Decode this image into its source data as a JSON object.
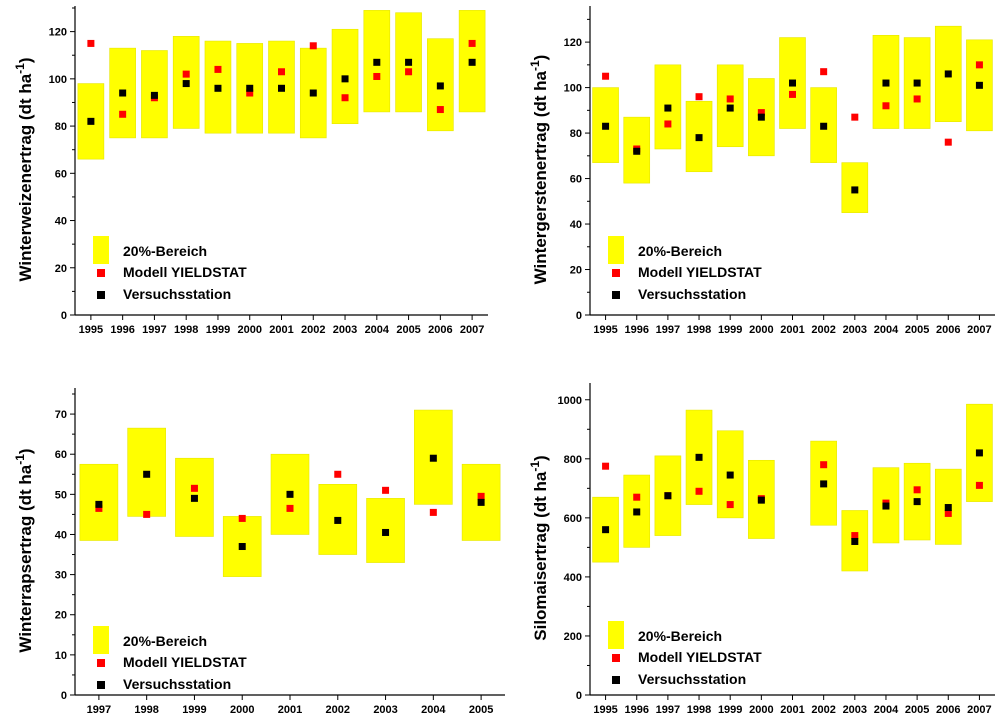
{
  "legend": {
    "range": "20%-Bereich",
    "model": "Modell YIELDSTAT",
    "station": "Versuchsstation"
  },
  "colors": {
    "range": "#ffff00",
    "model": "#ff0000",
    "station": "#000000",
    "axis": "#000000"
  },
  "chart_data": [
    {
      "type": "scatter",
      "ylabel": "Winterweizenertrag (dt ha-1)",
      "ylim": [
        0,
        130
      ],
      "yticks": [
        0,
        20,
        40,
        60,
        80,
        100,
        120
      ],
      "categories": [
        "1995",
        "1996",
        "1997",
        "1998",
        "1999",
        "2000",
        "2001",
        "2002",
        "2003",
        "2004",
        "2005",
        "2006",
        "2007"
      ],
      "series": [
        {
          "name": "20%-Bereich",
          "kind": "range",
          "low": [
            66,
            75,
            75,
            79,
            77,
            77,
            77,
            75,
            81,
            86,
            86,
            78,
            86
          ],
          "high": [
            98,
            113,
            112,
            118,
            116,
            115,
            116,
            113,
            121,
            129,
            128,
            117,
            129
          ]
        },
        {
          "name": "Modell YIELDSTAT",
          "kind": "point",
          "values": [
            115,
            85,
            92,
            102,
            104,
            94,
            103,
            114,
            92,
            101,
            103,
            87,
            115
          ]
        },
        {
          "name": "Versuchsstation",
          "kind": "point",
          "values": [
            82,
            94,
            93,
            98,
            96,
            96,
            96,
            94,
            100,
            107,
            107,
            97,
            107
          ]
        }
      ]
    },
    {
      "type": "scatter",
      "ylabel": "Wintergerstenertrag (dt ha-1)",
      "ylim": [
        0,
        135
      ],
      "yticks": [
        0,
        20,
        40,
        60,
        80,
        100,
        120
      ],
      "categories": [
        "1995",
        "1996",
        "1997",
        "1998",
        "1999",
        "2000",
        "2001",
        "2002",
        "2003",
        "2004",
        "2005",
        "2006",
        "2007"
      ],
      "series": [
        {
          "name": "20%-Bereich",
          "kind": "range",
          "low": [
            67,
            58,
            73,
            63,
            74,
            70,
            82,
            67,
            45,
            82,
            82,
            85,
            81
          ],
          "high": [
            100,
            87,
            110,
            94,
            110,
            104,
            122,
            100,
            67,
            123,
            122,
            127,
            121
          ]
        },
        {
          "name": "Modell YIELDSTAT",
          "kind": "point",
          "values": [
            105,
            73,
            84,
            96,
            95,
            89,
            97,
            107,
            87,
            92,
            95,
            76,
            110
          ]
        },
        {
          "name": "Versuchsstation",
          "kind": "point",
          "values": [
            83,
            72,
            91,
            78,
            91,
            87,
            102,
            83,
            55,
            102,
            102,
            106,
            101
          ]
        }
      ]
    },
    {
      "type": "scatter",
      "ylabel": "Winterrapsertrag (dt ha-1)",
      "ylim": [
        0,
        76
      ],
      "yticks": [
        0,
        10,
        20,
        30,
        40,
        50,
        60,
        70
      ],
      "categories": [
        "1997",
        "1998",
        "1999",
        "2000",
        "2001",
        "2002",
        "2003",
        "2004",
        "2005"
      ],
      "series": [
        {
          "name": "20%-Bereich",
          "kind": "range",
          "low": [
            38.5,
            44.5,
            39.5,
            29.5,
            40,
            35,
            33,
            47.5,
            38.5
          ],
          "high": [
            57.5,
            66.5,
            59,
            44.5,
            60,
            52.5,
            49,
            71,
            57.5
          ]
        },
        {
          "name": "Modell YIELDSTAT",
          "kind": "point",
          "values": [
            46.5,
            45,
            51.5,
            44,
            46.5,
            55,
            51,
            45.5,
            49.5
          ]
        },
        {
          "name": "Versuchsstation",
          "kind": "point",
          "values": [
            47.5,
            55,
            49,
            37,
            50,
            43.5,
            40.5,
            59,
            48
          ]
        }
      ]
    },
    {
      "type": "scatter",
      "ylabel": "Silomaisertrag (dt ha-1)",
      "ylim": [
        0,
        1050
      ],
      "yticks": [
        0,
        200,
        400,
        600,
        800,
        1000
      ],
      "categories": [
        "1995",
        "1996",
        "1997",
        "1998",
        "1999",
        "2000",
        "2001",
        "2002",
        "2003",
        "2004",
        "2005",
        "2006",
        "2007"
      ],
      "series": [
        {
          "name": "20%-Bereich",
          "kind": "range",
          "low": [
            450,
            500,
            540,
            645,
            600,
            530,
            null,
            575,
            420,
            515,
            525,
            510,
            655
          ],
          "high": [
            670,
            745,
            810,
            965,
            895,
            795,
            null,
            860,
            625,
            770,
            785,
            765,
            985
          ]
        },
        {
          "name": "Modell YIELDSTAT",
          "kind": "point",
          "values": [
            775,
            670,
            675,
            690,
            645,
            665,
            null,
            780,
            540,
            650,
            695,
            615,
            710
          ]
        },
        {
          "name": "Versuchsstation",
          "kind": "point",
          "values": [
            560,
            620,
            675,
            805,
            745,
            660,
            null,
            715,
            520,
            640,
            655,
            635,
            820
          ]
        }
      ]
    }
  ]
}
